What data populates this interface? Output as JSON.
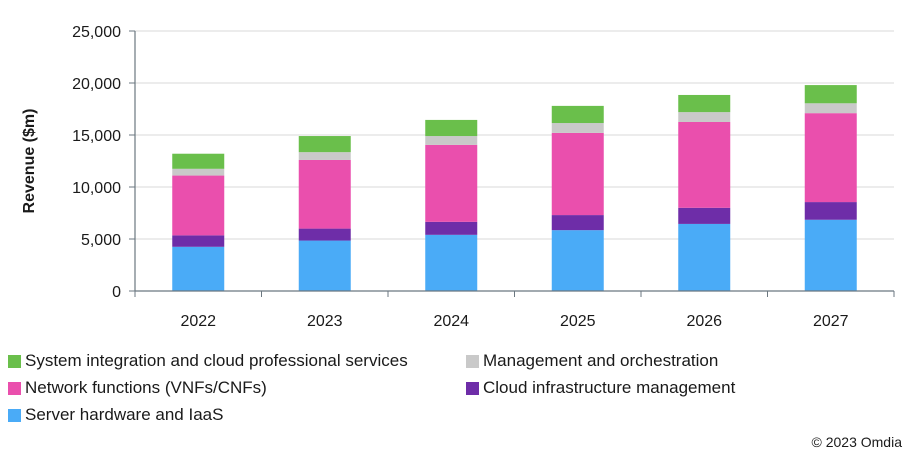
{
  "chart_data": {
    "type": "bar",
    "stacked": true,
    "title": "",
    "xlabel": "",
    "ylabel": "Revenue ($m)",
    "ylim": [
      0,
      25000
    ],
    "yticks": [
      0,
      5000,
      10000,
      15000,
      20000,
      25000
    ],
    "ytick_labels": [
      "0",
      "5,000",
      "10,000",
      "15,000",
      "20,000",
      "25,000"
    ],
    "grid": true,
    "legend_position": "bottom",
    "categories": [
      "2022",
      "2023",
      "2024",
      "2025",
      "2026",
      "2027"
    ],
    "series": [
      {
        "name": "Server hardware and IaaS",
        "color": "#4AABF7",
        "values": [
          4250,
          4850,
          5400,
          5850,
          6450,
          6850
        ]
      },
      {
        "name": "Cloud infrastructure management",
        "color": "#6E2DA8",
        "values": [
          1100,
          1150,
          1250,
          1450,
          1550,
          1700
        ]
      },
      {
        "name": "Network functions (VNFs/CNFs)",
        "color": "#EA4FAD",
        "values": [
          5750,
          6600,
          7400,
          7900,
          8250,
          8550
        ]
      },
      {
        "name": "Management and orchestration",
        "color": "#C9C9C9",
        "values": [
          650,
          750,
          850,
          950,
          950,
          950
        ]
      },
      {
        "name": "System integration and cloud professional services",
        "color": "#6ABF4B",
        "values": [
          1450,
          1550,
          1550,
          1650,
          1650,
          1750
        ]
      }
    ]
  },
  "legend": {
    "items": [
      {
        "label": "System integration and cloud professional services",
        "color": "#6ABF4B"
      },
      {
        "label": "Management and orchestration",
        "color": "#C9C9C9"
      },
      {
        "label": "Network functions (VNFs/CNFs)",
        "color": "#EA4FAD"
      },
      {
        "label": "Cloud infrastructure management",
        "color": "#6E2DA8"
      },
      {
        "label": "Server hardware and IaaS",
        "color": "#4AABF7"
      }
    ]
  },
  "footer": {
    "copyright": "© 2023 Omdia"
  }
}
